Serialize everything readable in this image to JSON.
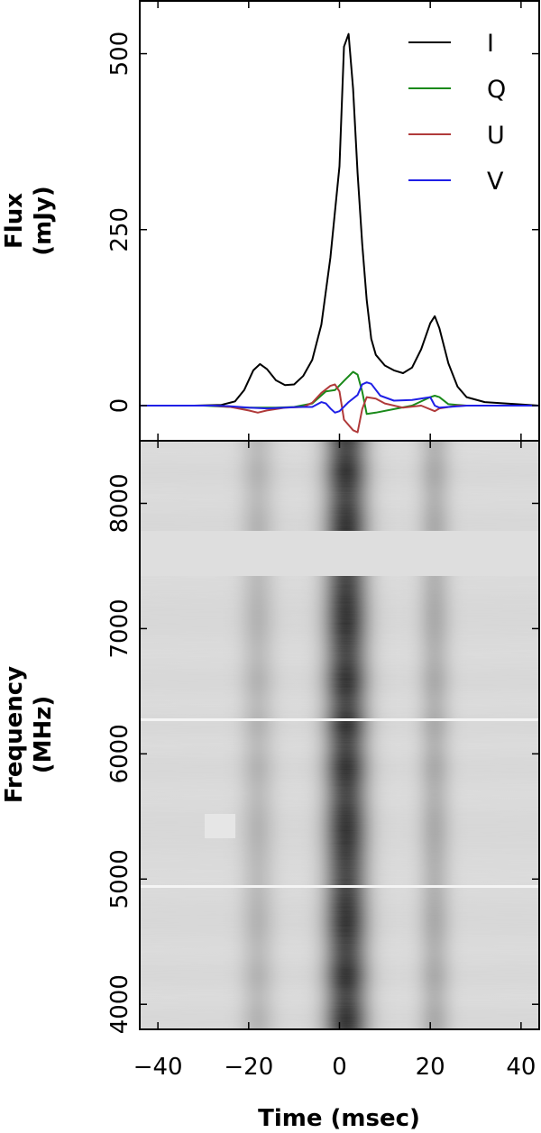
{
  "chart_data": [
    {
      "type": "line",
      "ylabel_line1": "Flux",
      "ylabel_line2": "(mJy)",
      "xlim": [
        -44,
        44
      ],
      "ylim": [
        -50,
        575
      ],
      "yticks": [
        0,
        250,
        500
      ],
      "legend_position": "top-right",
      "series": [
        {
          "name": "I",
          "color": "#000000",
          "points": [
            [
              -44,
              0
            ],
            [
              -32,
              0
            ],
            [
              -26,
              1
            ],
            [
              -23,
              6
            ],
            [
              -21,
              22
            ],
            [
              -19,
              50
            ],
            [
              -17.5,
              59
            ],
            [
              -16,
              52
            ],
            [
              -14,
              36
            ],
            [
              -12,
              29
            ],
            [
              -10,
              30
            ],
            [
              -8,
              42
            ],
            [
              -6,
              65
            ],
            [
              -4,
              115
            ],
            [
              -2,
              210
            ],
            [
              0,
              340
            ],
            [
              1,
              510
            ],
            [
              2,
              528
            ],
            [
              3,
              450
            ],
            [
              4,
              330
            ],
            [
              5,
              230
            ],
            [
              6,
              150
            ],
            [
              7,
              95
            ],
            [
              8,
              72
            ],
            [
              10,
              57
            ],
            [
              12,
              50
            ],
            [
              14,
              46
            ],
            [
              16,
              54
            ],
            [
              18,
              80
            ],
            [
              20,
              117
            ],
            [
              21,
              127
            ],
            [
              22,
              110
            ],
            [
              24,
              60
            ],
            [
              26,
              27
            ],
            [
              28,
              12
            ],
            [
              32,
              5
            ],
            [
              44,
              0
            ]
          ]
        },
        {
          "name": "Q",
          "color": "#1a8a1a",
          "points": [
            [
              -44,
              0
            ],
            [
              -30,
              0
            ],
            [
              -24,
              -2
            ],
            [
              -21,
              -3
            ],
            [
              -18,
              -3
            ],
            [
              -14,
              -3
            ],
            [
              -10,
              -2
            ],
            [
              -6,
              3
            ],
            [
              -3,
              20
            ],
            [
              -1,
              22
            ],
            [
              1,
              35
            ],
            [
              3,
              48
            ],
            [
              4,
              44
            ],
            [
              5,
              20
            ],
            [
              6,
              -12
            ],
            [
              8,
              -10
            ],
            [
              12,
              -5
            ],
            [
              16,
              0
            ],
            [
              20,
              12
            ],
            [
              21,
              14
            ],
            [
              22,
              12
            ],
            [
              24,
              2
            ],
            [
              28,
              0
            ],
            [
              44,
              0
            ]
          ]
        },
        {
          "name": "U",
          "color": "#b03a3a",
          "points": [
            [
              -44,
              0
            ],
            [
              -28,
              0
            ],
            [
              -24,
              -2
            ],
            [
              -20,
              -7
            ],
            [
              -18,
              -10
            ],
            [
              -16,
              -7
            ],
            [
              -12,
              -3
            ],
            [
              -8,
              -2
            ],
            [
              -6,
              4
            ],
            [
              -4,
              18
            ],
            [
              -2,
              28
            ],
            [
              -1,
              30
            ],
            [
              0,
              20
            ],
            [
              1,
              -20
            ],
            [
              3,
              -35
            ],
            [
              4,
              -38
            ],
            [
              5,
              -5
            ],
            [
              6,
              12
            ],
            [
              8,
              10
            ],
            [
              10,
              3
            ],
            [
              14,
              -3
            ],
            [
              18,
              0
            ],
            [
              21,
              -8
            ],
            [
              22,
              -4
            ],
            [
              26,
              0
            ],
            [
              44,
              0
            ]
          ]
        },
        {
          "name": "V",
          "color": "#1f1fe6",
          "points": [
            [
              -44,
              0
            ],
            [
              -28,
              0
            ],
            [
              -24,
              -1
            ],
            [
              -20,
              -3
            ],
            [
              -16,
              -4
            ],
            [
              -12,
              -3
            ],
            [
              -9,
              -2
            ],
            [
              -6,
              -2
            ],
            [
              -4,
              5
            ],
            [
              -3,
              3
            ],
            [
              -2,
              -4
            ],
            [
              -1,
              -10
            ],
            [
              0,
              -8
            ],
            [
              2,
              5
            ],
            [
              4,
              15
            ],
            [
              5,
              30
            ],
            [
              6,
              33
            ],
            [
              7,
              31
            ],
            [
              9,
              14
            ],
            [
              12,
              7
            ],
            [
              16,
              8
            ],
            [
              20,
              12
            ],
            [
              21,
              0
            ],
            [
              22,
              -3
            ],
            [
              24,
              -2
            ],
            [
              28,
              0
            ],
            [
              44,
              0
            ]
          ]
        }
      ]
    },
    {
      "type": "heatmap",
      "ylabel_line1": "Frequency",
      "ylabel_line2": "(MHz)",
      "xlabel": "Time (msec)",
      "xlim": [
        -44,
        44
      ],
      "ylim": [
        3800,
        8500
      ],
      "xticks": [
        -40,
        -20,
        0,
        20,
        40
      ],
      "yticks": [
        4000,
        5000,
        6000,
        7000,
        8000
      ],
      "colormap": "gray-reversed",
      "components": [
        {
          "center_ms": 1.5,
          "width_ms": 3.2,
          "amplitude": 1.0
        },
        {
          "center_ms": -18,
          "width_ms": 2.6,
          "amplitude": 0.22
        },
        {
          "center_ms": 21,
          "width_ms": 2.4,
          "amplitude": 0.28
        }
      ],
      "masked_band_mhz": [
        7420,
        7780
      ]
    }
  ]
}
